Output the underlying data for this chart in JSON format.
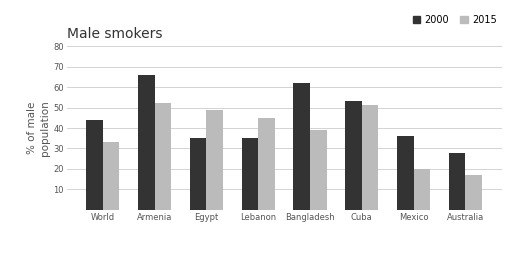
{
  "title": "Male smokers",
  "ylabel": "% of male\npopulation",
  "categories": [
    "World",
    "Armenia",
    "Egypt",
    "Lebanon",
    "Bangladesh",
    "Cuba",
    "Mexico",
    "Australia"
  ],
  "values_2000": [
    44,
    66,
    35,
    35,
    62,
    53,
    36,
    28
  ],
  "values_2015": [
    33,
    52,
    49,
    45,
    39,
    51,
    20,
    17
  ],
  "color_2000": "#333333",
  "color_2015": "#bbbbbb",
  "legend_labels": [
    "2000",
    "2015"
  ],
  "ylim": [
    0,
    80
  ],
  "yticks": [
    0,
    10,
    20,
    30,
    40,
    50,
    60,
    70,
    80
  ],
  "background_color": "#ffffff",
  "bar_width": 0.32,
  "title_fontsize": 10,
  "tick_fontsize": 6,
  "ylabel_fontsize": 7.5,
  "legend_fontsize": 7
}
